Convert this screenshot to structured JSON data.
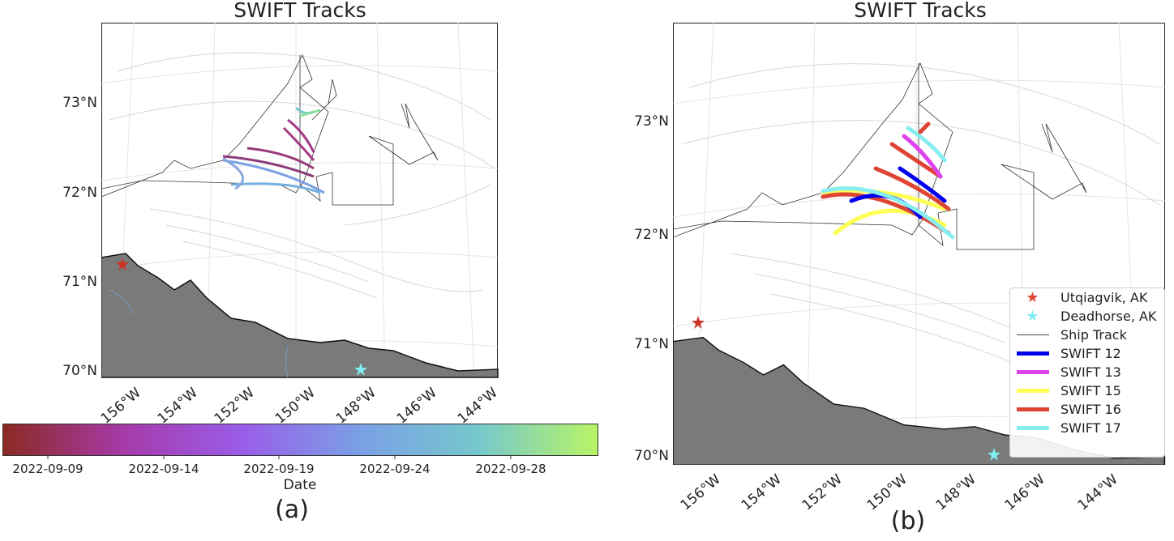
{
  "panel_a": {
    "title": "SWIFT Tracks",
    "lat_labels": [
      "73°N",
      "72°N",
      "71°N",
      "70°N"
    ],
    "lon_labels": [
      "156°W",
      "154°W",
      "152°W",
      "150°W",
      "148°W",
      "146°W",
      "144°W"
    ],
    "colorbar": {
      "label": "Date",
      "ticks": [
        "2022-09-09",
        "2022-09-14",
        "2022-09-19",
        "2022-09-24",
        "2022-09-28"
      ],
      "colors": [
        "#8b2a22",
        "#a63aa8",
        "#9a5ce8",
        "#7aa0e6",
        "#76c8cc",
        "#b8f466"
      ]
    },
    "caption": "(a)"
  },
  "panel_b": {
    "title": "SWIFT Tracks",
    "lat_labels": [
      "73°N",
      "72°N",
      "71°N",
      "70°N"
    ],
    "lon_labels": [
      "156°W",
      "154°W",
      "152°W",
      "150°W",
      "148°W",
      "146°W",
      "144°W"
    ],
    "legend": [
      {
        "label": "Utqiagvik, AK",
        "type": "star",
        "color": "#dd4433"
      },
      {
        "label": "Deadhorse, AK",
        "type": "star",
        "color": "#7feef0"
      },
      {
        "label": "Ship Track",
        "type": "thin",
        "color": "#444444"
      },
      {
        "label": "SWIFT 12",
        "type": "line",
        "color": "#0000ee"
      },
      {
        "label": "SWIFT 13",
        "type": "line",
        "color": "#dd44ee"
      },
      {
        "label": "SWIFT 15",
        "type": "line",
        "color": "#ffff55"
      },
      {
        "label": "SWIFT 16",
        "type": "line",
        "color": "#dd4433"
      },
      {
        "label": "SWIFT 17",
        "type": "line",
        "color": "#88eef0"
      }
    ],
    "caption": "(b)"
  }
}
